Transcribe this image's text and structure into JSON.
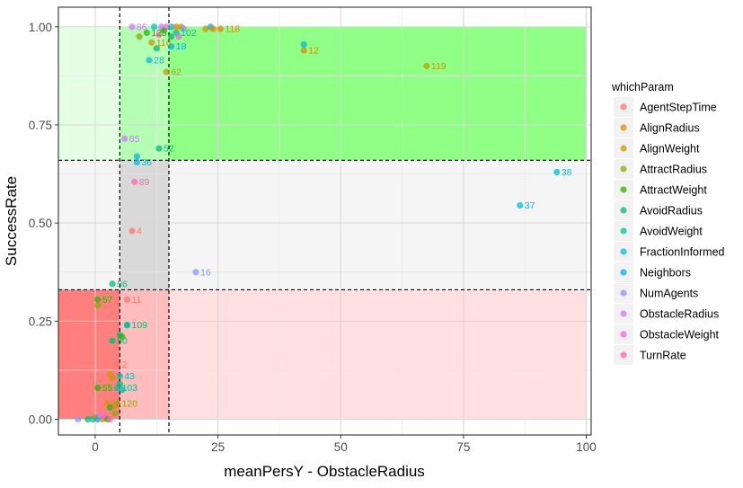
{
  "chart_data": {
    "type": "scatter",
    "xlabel": "meanPersY - ObstacleRadius",
    "ylabel": "SuccessRate",
    "xlim": [
      -7.5,
      101
    ],
    "ylim": [
      -0.04,
      1.05
    ],
    "x_ticks": [
      0,
      25,
      50,
      75,
      100
    ],
    "y_ticks": [
      0.0,
      0.25,
      0.5,
      0.75,
      1.0
    ],
    "x_tick_labels": [
      "0",
      "25",
      "50",
      "75",
      "100"
    ],
    "y_tick_labels": [
      "0.00",
      "0.25",
      "0.50",
      "0.75",
      "1.00"
    ],
    "grid": true,
    "legend": {
      "title": "whichParam",
      "placement": "right",
      "entries": [
        {
          "name": "AgentStepTime",
          "color": "#F8766D"
        },
        {
          "name": "AlignRadius",
          "color": "#E18A00"
        },
        {
          "name": "AlignWeight",
          "color": "#BE9C00"
        },
        {
          "name": "AttractRadius",
          "color": "#8CAB00"
        },
        {
          "name": "AttractWeight",
          "color": "#24B700"
        },
        {
          "name": "AvoidRadius",
          "color": "#00BE70"
        },
        {
          "name": "AvoidWeight",
          "color": "#00C1AB"
        },
        {
          "name": "FractionInformed",
          "color": "#00BBDA"
        },
        {
          "name": "Neighbors",
          "color": "#00ACFC"
        },
        {
          "name": "NumAgents",
          "color": "#8B93FF"
        },
        {
          "name": "ObstacleRadius",
          "color": "#D575FE"
        },
        {
          "name": "ObstacleWeight",
          "color": "#F962DD"
        },
        {
          "name": "TurnRate",
          "color": "#FF65AC"
        }
      ]
    },
    "regions": [
      {
        "x": [
          -7.5,
          5
        ],
        "y": [
          0.66,
          1.0
        ],
        "color": "#e5ffe5"
      },
      {
        "x": [
          5,
          15
        ],
        "y": [
          0.66,
          1.0
        ],
        "color": "#b4ffb4"
      },
      {
        "x": [
          15,
          100
        ],
        "y": [
          0.66,
          1.0
        ],
        "color": "#90ff85"
      },
      {
        "x": [
          -7.5,
          5
        ],
        "y": [
          0.33,
          0.66
        ],
        "color": "#f5f5f5"
      },
      {
        "x": [
          5,
          15
        ],
        "y": [
          0.33,
          0.66
        ],
        "color": "#d9d9d9"
      },
      {
        "x": [
          15,
          100
        ],
        "y": [
          0.33,
          0.66
        ],
        "color": "#f5f5f5"
      },
      {
        "x": [
          -7.5,
          5
        ],
        "y": [
          0.0,
          0.33
        ],
        "color": "#ff7f7f"
      },
      {
        "x": [
          5,
          15
        ],
        "y": [
          0.0,
          0.33
        ],
        "color": "#ffbcbc"
      },
      {
        "x": [
          15,
          100
        ],
        "y": [
          0.0,
          0.33
        ],
        "color": "#ffdfe0"
      }
    ],
    "vlines": [
      5,
      15
    ],
    "hlines": [
      0.66,
      0.33
    ],
    "points": [
      {
        "x": 7.5,
        "y": 0.48,
        "label": "4",
        "color": "#F8766D"
      },
      {
        "x": 6.5,
        "y": 0.305,
        "label": "11",
        "color": "#F8766D"
      },
      {
        "x": 4.5,
        "y": 0.14,
        "label": "2",
        "color": "#F8766D"
      },
      {
        "x": 42.5,
        "y": 0.94,
        "label": "12",
        "color": "#E18A00"
      },
      {
        "x": 25.5,
        "y": 0.995,
        "label": "118",
        "color": "#E18A00"
      },
      {
        "x": 67.5,
        "y": 0.9,
        "label": "119",
        "color": "#BE9C00"
      },
      {
        "x": 14.5,
        "y": 0.885,
        "label": "62",
        "color": "#BE9C00"
      },
      {
        "x": 11.5,
        "y": 0.96,
        "label": "116",
        "color": "#BE9C00"
      },
      {
        "x": 4.5,
        "y": 0.04,
        "label": "120",
        "color": "#8CAB00"
      },
      {
        "x": 10.5,
        "y": 0.985,
        "label": "125",
        "color": "#24B700"
      },
      {
        "x": 0.5,
        "y": 0.305,
        "label": "57",
        "color": "#24B700"
      },
      {
        "x": 0.5,
        "y": 0.08,
        "label": "55",
        "color": "#24B700"
      },
      {
        "x": 13.0,
        "y": 0.69,
        "label": "52",
        "color": "#00BE70"
      },
      {
        "x": 3.5,
        "y": 0.345,
        "label": "56",
        "color": "#00BE70"
      },
      {
        "x": 6.5,
        "y": 0.24,
        "label": "109",
        "color": "#00BE70"
      },
      {
        "x": 3.5,
        "y": 0.2,
        "label": "50",
        "color": "#00BE70"
      },
      {
        "x": 16.5,
        "y": 0.985,
        "label": "102",
        "color": "#00C1AB"
      },
      {
        "x": 4.5,
        "y": 0.08,
        "label": "103",
        "color": "#00C1AB"
      },
      {
        "x": 5.0,
        "y": 0.11,
        "label": "43",
        "color": "#00C1AB"
      },
      {
        "x": 94.0,
        "y": 0.63,
        "label": "38",
        "color": "#00BBDA"
      },
      {
        "x": 86.5,
        "y": 0.545,
        "label": "37",
        "color": "#00BBDA"
      },
      {
        "x": 8.5,
        "y": 0.655,
        "label": "36",
        "color": "#00BBDA"
      },
      {
        "x": 11.0,
        "y": 0.915,
        "label": "28",
        "color": "#00BBDA"
      },
      {
        "x": 15.5,
        "y": 0.95,
        "label": "18",
        "color": "#00ACFC"
      },
      {
        "x": 20.5,
        "y": 0.375,
        "label": "16",
        "color": "#8B93FF"
      },
      {
        "x": 7.5,
        "y": 1.0,
        "label": "86",
        "color": "#D575FE"
      },
      {
        "x": 6.0,
        "y": 0.715,
        "label": "85",
        "color": "#D575FE"
      },
      {
        "x": 8.0,
        "y": 0.605,
        "label": "89",
        "color": "#FF65AC"
      },
      {
        "x": 12.0,
        "y": 1.0,
        "label": "",
        "color": "#00C1AB"
      },
      {
        "x": 13.5,
        "y": 1.0,
        "label": "",
        "color": "#D575FE"
      },
      {
        "x": 14.5,
        "y": 1.0,
        "label": "",
        "color": "#F962DD"
      },
      {
        "x": 15.5,
        "y": 1.0,
        "label": "",
        "color": "#00BBDA"
      },
      {
        "x": 16.5,
        "y": 1.0,
        "label": "",
        "color": "#E18A00"
      },
      {
        "x": 17.5,
        "y": 1.0,
        "label": "",
        "color": "#BE9C00"
      },
      {
        "x": 18.0,
        "y": 0.995,
        "label": "",
        "color": "#8B93FF"
      },
      {
        "x": 14.0,
        "y": 0.99,
        "label": "",
        "color": "#24B700"
      },
      {
        "x": 13.0,
        "y": 0.98,
        "label": "",
        "color": "#FF65AC"
      },
      {
        "x": 15.5,
        "y": 0.975,
        "label": "",
        "color": "#00BE70"
      },
      {
        "x": 17.0,
        "y": 0.975,
        "label": "",
        "color": "#F962DD"
      },
      {
        "x": 12.5,
        "y": 0.945,
        "label": "",
        "color": "#00BE70"
      },
      {
        "x": 23.5,
        "y": 1.0,
        "label": "",
        "color": "#00ACFC"
      },
      {
        "x": 22.5,
        "y": 0.995,
        "label": "",
        "color": "#BE9C00"
      },
      {
        "x": 24.0,
        "y": 0.995,
        "label": "",
        "color": "#E18A00"
      },
      {
        "x": 42.5,
        "y": 0.955,
        "label": "",
        "color": "#00BBDA"
      },
      {
        "x": 9.0,
        "y": 0.975,
        "label": "",
        "color": "#8CAB00"
      },
      {
        "x": 8.5,
        "y": 0.67,
        "label": "",
        "color": "#00BBDA"
      },
      {
        "x": 0.5,
        "y": 0.29,
        "label": "",
        "color": "#8CAB00"
      },
      {
        "x": 6.5,
        "y": 0.24,
        "label": "",
        "color": "#00C1AB"
      },
      {
        "x": 5.0,
        "y": 0.215,
        "label": "",
        "color": "#00BE70"
      },
      {
        "x": 5.5,
        "y": 0.21,
        "label": "",
        "color": "#24B700"
      },
      {
        "x": 3.0,
        "y": 0.115,
        "label": "",
        "color": "#BE9C00"
      },
      {
        "x": 3.5,
        "y": 0.105,
        "label": "",
        "color": "#E18A00"
      },
      {
        "x": 5.0,
        "y": 0.09,
        "label": "",
        "color": "#00BE70"
      },
      {
        "x": 5.5,
        "y": 0.075,
        "label": "",
        "color": "#00C1AB"
      },
      {
        "x": 2.5,
        "y": 0.04,
        "label": "",
        "color": "#E18A00"
      },
      {
        "x": 3.5,
        "y": 0.04,
        "label": "",
        "color": "#F8766D"
      },
      {
        "x": 4.0,
        "y": 0.035,
        "label": "",
        "color": "#BE9C00"
      },
      {
        "x": 3.0,
        "y": 0.03,
        "label": "",
        "color": "#24B700"
      },
      {
        "x": -3.5,
        "y": 0.0,
        "label": "",
        "color": "#8B93FF"
      },
      {
        "x": -1.5,
        "y": 0.0,
        "label": "",
        "color": "#00BE70"
      },
      {
        "x": -0.5,
        "y": 0.0,
        "label": "",
        "color": "#00C1AB"
      },
      {
        "x": 0.0,
        "y": 0.005,
        "label": "",
        "color": "#8CAB00"
      },
      {
        "x": 0.5,
        "y": 0.0,
        "label": "",
        "color": "#00ACFC"
      },
      {
        "x": 1.0,
        "y": 0.01,
        "label": "",
        "color": "#D575FE"
      },
      {
        "x": 1.5,
        "y": 0.0,
        "label": "",
        "color": "#E18A00"
      },
      {
        "x": 2.0,
        "y": 0.005,
        "label": "",
        "color": "#F962DD"
      },
      {
        "x": 2.5,
        "y": 0.0,
        "label": "",
        "color": "#24B700"
      },
      {
        "x": 3.0,
        "y": 0.0,
        "label": "",
        "color": "#FF65AC"
      },
      {
        "x": 4.0,
        "y": 0.015,
        "label": "",
        "color": "#8CAB00"
      }
    ]
  }
}
